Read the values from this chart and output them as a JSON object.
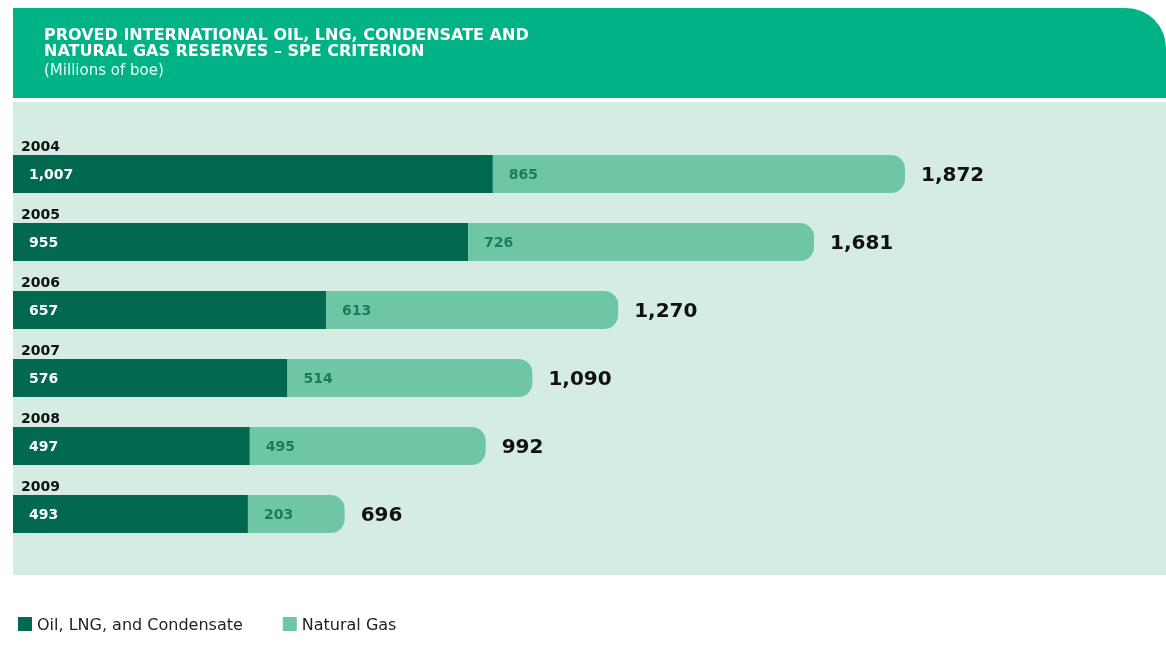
{
  "chart_data": {
    "type": "bar",
    "orientation": "horizontal",
    "stacked": true,
    "title": "PROVED INTERNATIONAL OIL, LNG, CONDENSATE AND\nNATURAL GAS RESERVES – SPE CRITERION",
    "subtitle": "(Millions of boe)",
    "categories": [
      "2004",
      "2005",
      "2006",
      "2007",
      "2008",
      "2009"
    ],
    "series": [
      {
        "name": "Oil, LNG, and Condensate",
        "color": "#00694f",
        "values": [
          1007,
          955,
          657,
          576,
          497,
          493
        ],
        "value_labels": [
          "1,007",
          "955",
          "657",
          "576",
          "497",
          "493"
        ]
      },
      {
        "name": "Natural Gas",
        "color": "#6fc6a5",
        "values": [
          865,
          726,
          613,
          514,
          495,
          203
        ],
        "value_labels": [
          "865",
          "726",
          "613",
          "514",
          "495",
          "203"
        ]
      }
    ],
    "totals": [
      "1,872",
      "1,681",
      "1,270",
      "1,090",
      "992",
      "696"
    ],
    "legend": "bottom left"
  }
}
